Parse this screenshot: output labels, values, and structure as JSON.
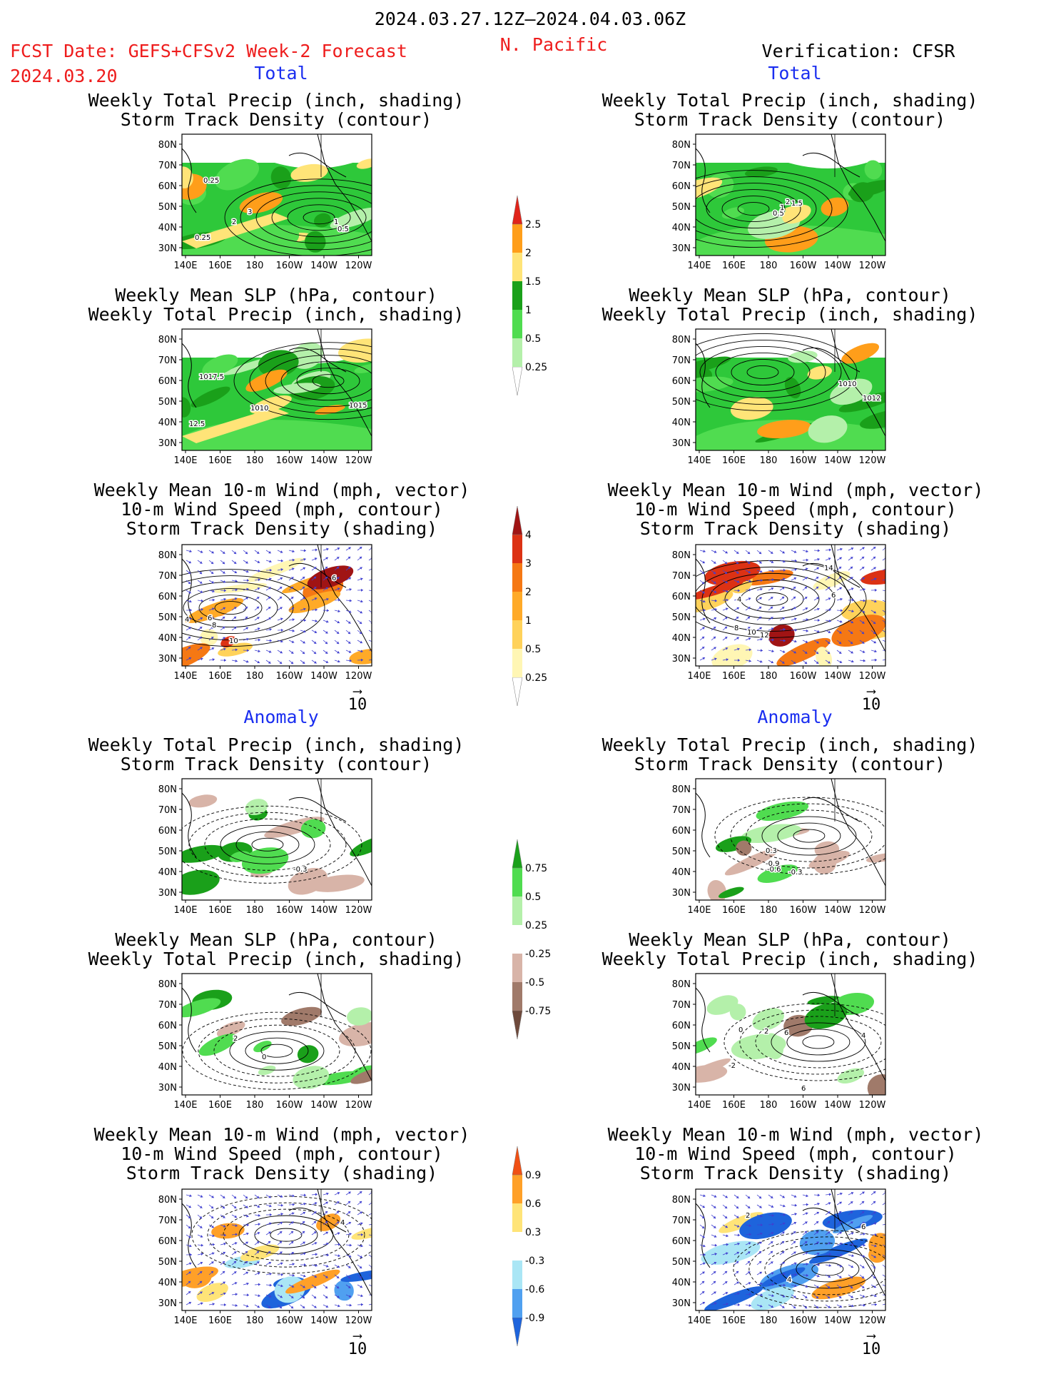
{
  "header": {
    "period": "2024.03.27.12Z–2024.04.03.06Z",
    "region": "N. Pacific",
    "fcst_label": "FCST Date: GEFS+CFSv2 Week-2 Forecast",
    "fcst_date": "2024.03.20",
    "verification_label": "Verification: CFSR"
  },
  "section_labels": {
    "total": "Total",
    "anomaly": "Anomaly"
  },
  "titles": {
    "precip_storm": [
      "Weekly Total Precip (inch, shading)",
      "Storm Track Density (contour)"
    ],
    "slp_precip": [
      "Weekly Mean SLP (hPa, contour)",
      "Weekly Total Precip (inch, shading)"
    ],
    "wind_storm": [
      "Weekly Mean 10-m Wind (mph, vector)",
      "10-m Wind Speed (mph, contour)",
      "Storm Track Density (shading)"
    ]
  },
  "axes": {
    "lat_ticks": [
      "80N",
      "70N",
      "60N",
      "50N",
      "40N",
      "30N"
    ],
    "lon_ticks": [
      "140E",
      "160E",
      "180",
      "160W",
      "140W",
      "120W"
    ]
  },
  "vector_ref": "10",
  "panel_labels": {
    "lp1": [
      "0.25",
      "2",
      "3",
      "1",
      "0.5",
      "0.25"
    ],
    "lp2": [
      "1017.5",
      "1010",
      "1015",
      "12.5"
    ],
    "lp3": [
      "4",
      "6",
      "8",
      "10",
      "6"
    ],
    "rp1": [
      "0.5",
      "1",
      "2",
      "1.5"
    ],
    "rp2": [
      "1010",
      "1012"
    ],
    "rp3": [
      "4",
      "6",
      "8",
      "10",
      "12",
      "14"
    ],
    "la1": [
      "-0.3"
    ],
    "la2": [
      "2",
      "0"
    ],
    "la3": [
      "4"
    ],
    "ra1": [
      "0.3",
      "-0.6",
      "-0.9",
      "-0.3"
    ],
    "ra2": [
      "0",
      "2",
      "6",
      "-2",
      "6",
      "4"
    ],
    "ra3": [
      "2",
      "4",
      "6"
    ]
  },
  "colorbars": {
    "precip_total": {
      "labels": [
        "2.5",
        "2",
        "1.5",
        "1",
        "0.5",
        "0.25"
      ],
      "colors": [
        "#ffffff",
        "#b4f0aa",
        "#50dc50",
        "#1aa01a",
        "#ffe478",
        "#ff9e1a",
        "#e0241a"
      ]
    },
    "storm_total": {
      "labels": [
        "4",
        "3",
        "2",
        "1",
        "0.5",
        "0.25"
      ],
      "colors": [
        "#ffffff",
        "#fff6b4",
        "#ffd25a",
        "#ffaa28",
        "#f57814",
        "#dc3214",
        "#a01414"
      ]
    },
    "precip_anom": {
      "labels": [
        "0.75",
        "0.5",
        "0.25",
        "-0.25",
        "-0.5",
        "-0.75"
      ],
      "colors": [
        "#6e4a3c",
        "#a07a6a",
        "#d8b4a8",
        "#ffffff",
        "#b4f0aa",
        "#50dc50",
        "#1aa01a"
      ]
    },
    "storm_anom": {
      "labels": [
        "0.9",
        "0.6",
        "0.3",
        "-0.3",
        "-0.6",
        "-0.9"
      ],
      "colors": [
        "#1e64dc",
        "#50a0f0",
        "#aae6f5",
        "#ffffff",
        "#ffe478",
        "#ffa028",
        "#f05014"
      ]
    }
  }
}
